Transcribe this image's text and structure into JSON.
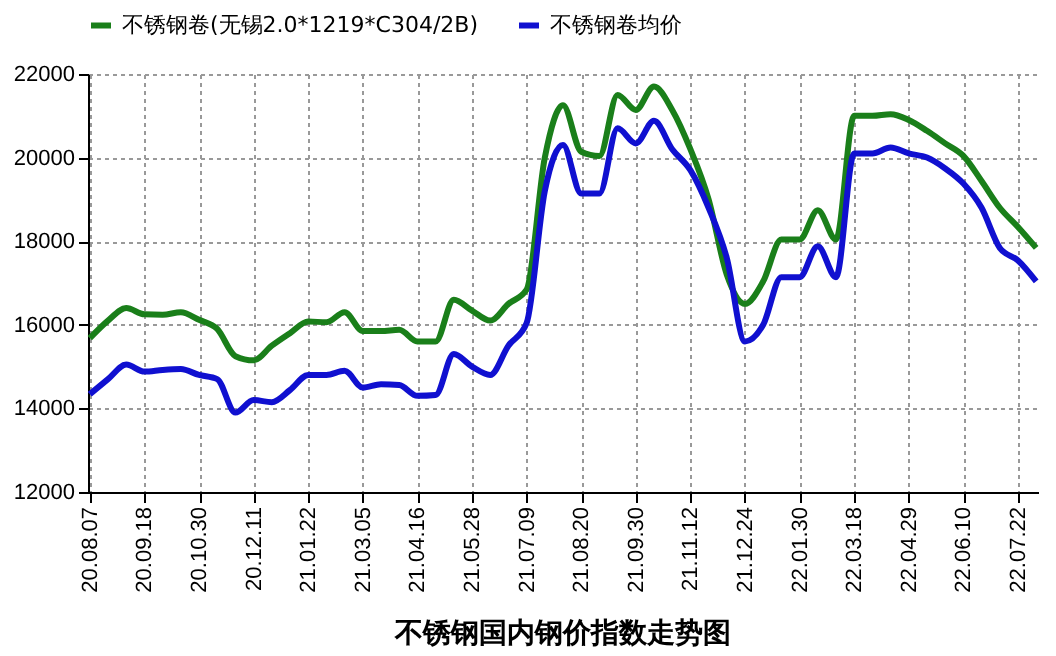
{
  "chart_data": {
    "type": "line",
    "title": "不锈钢国内钢价指数走势图",
    "categories": [
      "20.08.07",
      null,
      null,
      "20.09.18",
      null,
      null,
      "20.10.30",
      null,
      null,
      "20.12.11",
      null,
      null,
      "21.01.22",
      null,
      null,
      "21.03.05",
      null,
      null,
      "21.04.16",
      null,
      null,
      "21.05.28",
      null,
      null,
      "21.07.09",
      null,
      null,
      "21.08.20",
      null,
      null,
      "21.09.30",
      null,
      null,
      "21.11.12",
      null,
      null,
      "21.12.24",
      null,
      null,
      "22.01.30",
      null,
      null,
      "22.03.18",
      null,
      null,
      "22.04.29",
      null,
      null,
      "22.06.10",
      null,
      null,
      "22.07.22",
      null
    ],
    "series": [
      {
        "name": "不锈钢卷(无锡2.0*1219*C304/2B)",
        "color": "#1a7f1a",
        "values": [
          15680,
          16100,
          16400,
          16250,
          16240,
          16300,
          16120,
          15900,
          15250,
          15150,
          15500,
          15800,
          16080,
          16060,
          16300,
          15850,
          15850,
          15880,
          15600,
          15600,
          16600,
          16340,
          16100,
          16500,
          16840,
          20000,
          21250,
          20140,
          20040,
          21500,
          21140,
          21700,
          21140,
          20200,
          19000,
          17200,
          16500,
          17040,
          18040,
          18040,
          18740,
          18040,
          21000,
          21000,
          21040,
          20900,
          20640,
          20340,
          20040,
          19440,
          18800,
          18340,
          17840
        ]
      },
      {
        "name": "不锈钢卷均价",
        "color": "#1010d0",
        "values": [
          14340,
          14700,
          15050,
          14880,
          14920,
          14940,
          14800,
          14700,
          13900,
          14200,
          14150,
          14440,
          14800,
          14800,
          14900,
          14500,
          14580,
          14560,
          14300,
          14320,
          15300,
          15000,
          14800,
          15500,
          16040,
          19200,
          20300,
          19140,
          19140,
          20700,
          20340,
          20880,
          20200,
          19700,
          18800,
          17600,
          15600,
          16000,
          17140,
          17140,
          17880,
          17140,
          20100,
          20100,
          20240,
          20100,
          20000,
          19740,
          19380,
          18800,
          17840,
          17540,
          17040
        ]
      }
    ],
    "ylim": [
      12000,
      22000
    ],
    "yticks": [
      12000,
      14000,
      16000,
      18000,
      20000,
      22000
    ],
    "grid": true,
    "legend": "top"
  }
}
